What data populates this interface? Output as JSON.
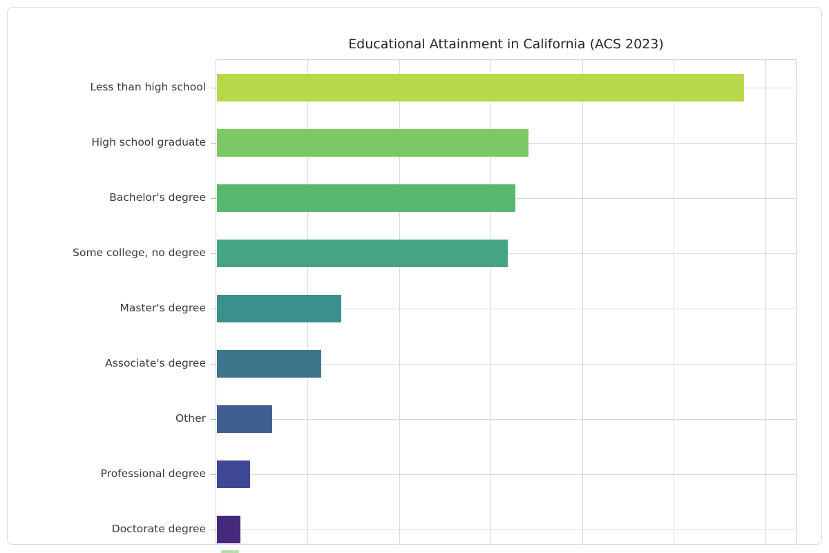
{
  "page": {
    "background": "#ffffff"
  },
  "card": {
    "background": "#ffffff",
    "border_color": "#d9d9d9"
  },
  "chart_data": {
    "type": "bar",
    "orientation": "horizontal",
    "title": "Educational Attainment in California (ACS 2023)",
    "categories": [
      "Less than high school",
      "High school graduate",
      "Bachelor's degree",
      "Some college, no degree",
      "Master's degree",
      "Associate's degree",
      "Other",
      "Professional degree",
      "Doctorate degree"
    ],
    "values": [
      28.8,
      17.0,
      16.3,
      15.9,
      6.8,
      5.7,
      3.0,
      1.8,
      1.3
    ],
    "colors": [
      "#b8d84a",
      "#7cc766",
      "#56b96f",
      "#45a486",
      "#3a908b",
      "#3e748c",
      "#3f5f90",
      "#414797",
      "#45297b"
    ],
    "xlabel": "",
    "ylabel": "",
    "xlim": [
      0,
      31.7
    ],
    "x_gridline_interval": 5,
    "x_tick_labels_visible": false,
    "grid": true,
    "legend": false,
    "background": "#ffffff",
    "palette": "viridis"
  },
  "fragment": {
    "color": "#b7dcab"
  }
}
